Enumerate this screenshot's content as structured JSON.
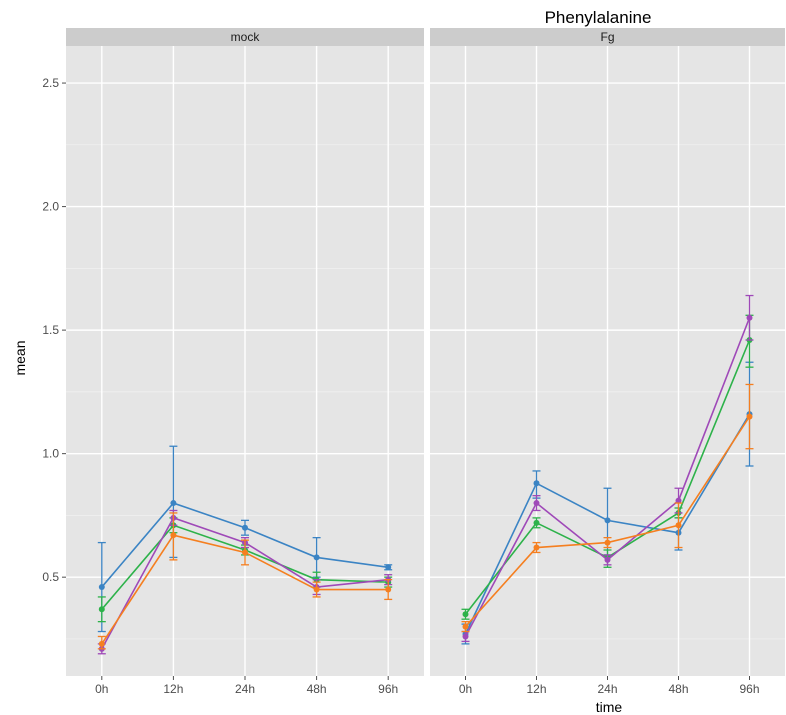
{
  "chart_data": {
    "type": "line",
    "title": "Phenylalanine",
    "xlabel": "time",
    "ylabel": "mean",
    "categories": [
      "0h",
      "12h",
      "24h",
      "48h",
      "96h"
    ],
    "ylim": [
      0.1,
      2.65
    ],
    "yticks": [
      0.5,
      1.0,
      1.5,
      2.0,
      2.5
    ],
    "ytick_labels": [
      "0.5",
      "1.0",
      "1.5",
      "2.0",
      "2.5"
    ],
    "grid": true,
    "facets": [
      {
        "label": "mock",
        "series": [
          {
            "color": "#3b84c4",
            "values": [
              0.46,
              0.8,
              0.7,
              0.58,
              0.54
            ],
            "err_low": [
              0.28,
              0.58,
              0.67,
              0.5,
              0.53
            ],
            "err_high": [
              0.64,
              1.03,
              0.73,
              0.66,
              0.55
            ]
          },
          {
            "color": "#2db24a",
            "values": [
              0.37,
              0.71,
              0.61,
              0.49,
              0.48
            ],
            "err_low": [
              0.32,
              0.68,
              0.59,
              0.46,
              0.46
            ],
            "err_high": [
              0.42,
              0.74,
              0.63,
              0.52,
              0.5
            ]
          },
          {
            "color": "#9f49b8",
            "values": [
              0.21,
              0.74,
              0.64,
              0.46,
              0.49
            ],
            "err_low": [
              0.19,
              0.71,
              0.62,
              0.43,
              0.47
            ],
            "err_high": [
              0.23,
              0.77,
              0.66,
              0.49,
              0.51
            ]
          },
          {
            "color": "#f57f20",
            "values": [
              0.23,
              0.67,
              0.6,
              0.45,
              0.45
            ],
            "err_low": [
              0.21,
              0.57,
              0.55,
              0.42,
              0.41
            ],
            "err_high": [
              0.26,
              0.76,
              0.65,
              0.48,
              0.49
            ]
          }
        ]
      },
      {
        "label": "Fg",
        "series": [
          {
            "color": "#3b84c4",
            "values": [
              0.27,
              0.88,
              0.73,
              0.68,
              1.16
            ],
            "err_low": [
              0.23,
              0.82,
              0.59,
              0.61,
              0.95
            ],
            "err_high": [
              0.31,
              0.93,
              0.86,
              0.74,
              1.37
            ]
          },
          {
            "color": "#2db24a",
            "values": [
              0.35,
              0.72,
              0.58,
              0.76,
              1.46
            ],
            "err_low": [
              0.33,
              0.7,
              0.54,
              0.74,
              1.35
            ],
            "err_high": [
              0.37,
              0.74,
              0.61,
              0.78,
              1.56
            ]
          },
          {
            "color": "#9f49b8",
            "values": [
              0.26,
              0.8,
              0.57,
              0.81,
              1.55
            ],
            "err_low": [
              0.24,
              0.77,
              0.55,
              0.76,
              1.46
            ],
            "err_high": [
              0.28,
              0.83,
              0.59,
              0.86,
              1.64
            ]
          },
          {
            "color": "#f57f20",
            "values": [
              0.3,
              0.62,
              0.64,
              0.71,
              1.15
            ],
            "err_low": [
              0.28,
              0.6,
              0.62,
              0.62,
              1.02
            ],
            "err_high": [
              0.32,
              0.64,
              0.66,
              0.8,
              1.28
            ]
          }
        ]
      }
    ]
  }
}
